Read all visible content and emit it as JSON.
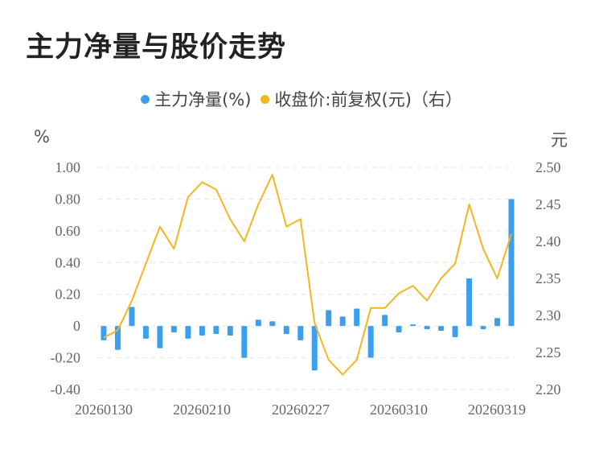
{
  "title": "主力净量与股价走势",
  "legend": {
    "series_1": "主力净量(%)",
    "series_2": "收盘价:前复权(元)（右）"
  },
  "units": {
    "left": "%",
    "right": "元"
  },
  "colors": {
    "bar": "#3aa0ee",
    "line": "#f3b61f",
    "grid": "#e6e6e6",
    "text": "#666666"
  },
  "chart_data": {
    "type": "bar+line",
    "x_tick_labels": [
      "20260130",
      "20260210",
      "20260227",
      "20260310",
      "20260319"
    ],
    "y_left": {
      "ticks": [
        "1.00",
        "0.80",
        "0.60",
        "0.40",
        "0.20",
        "0",
        "-0.20",
        "-0.40"
      ],
      "range": [
        -0.4,
        1.0
      ]
    },
    "y_right": {
      "ticks": [
        "2.50",
        "2.45",
        "2.40",
        "2.35",
        "2.30",
        "2.25",
        "2.20"
      ],
      "range": [
        2.2,
        2.5
      ]
    },
    "series": [
      {
        "name": "主力净量(%)",
        "type": "bar",
        "values": [
          -0.09,
          -0.15,
          0.12,
          -0.08,
          -0.14,
          -0.04,
          -0.08,
          -0.06,
          -0.05,
          -0.06,
          -0.2,
          0.04,
          0.03,
          -0.05,
          -0.09,
          -0.28,
          0.1,
          0.06,
          0.11,
          -0.2,
          0.07,
          -0.04,
          0.01,
          -0.02,
          -0.03,
          -0.07,
          0.3,
          -0.02,
          0.05,
          0.8
        ]
      },
      {
        "name": "收盘价:前复权(元)（右）",
        "type": "line",
        "values": [
          2.27,
          2.28,
          2.32,
          2.37,
          2.42,
          2.39,
          2.46,
          2.48,
          2.47,
          2.43,
          2.4,
          2.45,
          2.49,
          2.42,
          2.43,
          2.29,
          2.24,
          2.22,
          2.24,
          2.31,
          2.31,
          2.33,
          2.34,
          2.32,
          2.35,
          2.37,
          2.45,
          2.39,
          2.35,
          2.41
        ]
      }
    ]
  }
}
